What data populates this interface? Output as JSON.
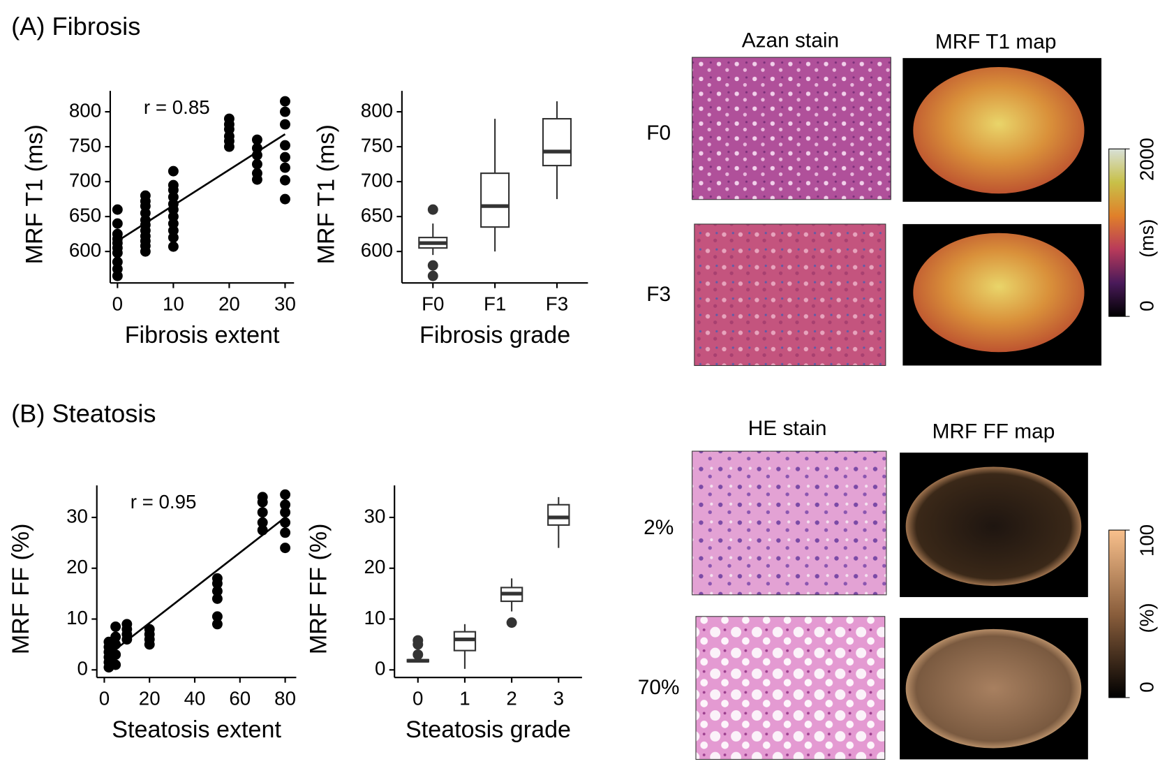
{
  "panels": [
    {
      "label": "(A) Fibrosis",
      "image_titles": [
        "Azan stain",
        "MRF T1 map"
      ],
      "row_labels": [
        "F0",
        "F3"
      ],
      "colorbar": {
        "ticks": [
          0,
          2000
        ],
        "label": "(ms)"
      }
    },
    {
      "label": "(B) Steatosis",
      "image_titles": [
        "HE stain",
        "MRF FF map"
      ],
      "row_labels": [
        "2%",
        "70%"
      ],
      "colorbar": {
        "ticks": [
          0,
          100
        ],
        "label": "(%)"
      }
    }
  ],
  "chart_data": [
    {
      "type": "scatter",
      "xlabel": "Fibrosis extent",
      "ylabel": "MRF T1 (ms)",
      "annotation": "r = 0.85",
      "color": "#000000",
      "x": [
        0,
        0,
        0,
        0,
        0,
        0,
        0,
        0,
        0,
        0,
        5,
        5,
        5,
        5,
        5,
        5,
        5,
        5,
        5,
        5,
        5,
        10,
        10,
        10,
        10,
        10,
        10,
        10,
        10,
        10,
        10,
        10,
        20,
        20,
        20,
        20,
        20,
        20,
        25,
        25,
        25,
        25,
        25,
        25,
        30,
        30,
        30,
        30,
        30,
        30,
        30,
        30
      ],
      "y": [
        660,
        640,
        625,
        618,
        612,
        605,
        598,
        585,
        575,
        565,
        680,
        672,
        665,
        655,
        645,
        638,
        630,
        622,
        615,
        608,
        600,
        715,
        695,
        688,
        678,
        668,
        660,
        650,
        640,
        630,
        620,
        607,
        790,
        782,
        775,
        765,
        758,
        750,
        760,
        748,
        738,
        725,
        712,
        703,
        815,
        800,
        782,
        752,
        735,
        720,
        702,
        675
      ],
      "fit": {
        "x": [
          0,
          30
        ],
        "y": [
          615,
          768
        ]
      },
      "xlim": [
        -1.3,
        31.6
      ],
      "xticks": [
        0,
        10,
        20,
        30
      ],
      "ylim": [
        555,
        830
      ],
      "yticks": [
        600,
        650,
        700,
        750,
        800
      ]
    },
    {
      "type": "box",
      "xlabel": "Fibrosis grade",
      "ylabel": "MRF T1 (ms)",
      "categories": [
        "F0",
        "F1",
        "F3"
      ],
      "boxes": [
        {
          "low": 595,
          "q1": 605,
          "median": 612,
          "q3": 620,
          "high": 640,
          "outliers": [
            660,
            580,
            565
          ]
        },
        {
          "low": 600,
          "q1": 635,
          "median": 665,
          "q3": 712,
          "high": 790,
          "outliers": []
        },
        {
          "low": 675,
          "q1": 723,
          "median": 743,
          "q3": 790,
          "high": 815,
          "outliers": []
        }
      ],
      "ylim": [
        555,
        830
      ],
      "yticks": [
        600,
        650,
        700,
        750,
        800
      ]
    },
    {
      "type": "scatter",
      "xlabel": "Steatosis extent",
      "ylabel": "MRF FF (%)",
      "annotation": "r = 0.95",
      "color": "#000000",
      "x": [
        2,
        2,
        2,
        2,
        2,
        2,
        3,
        3,
        3,
        5,
        5,
        5,
        5,
        5,
        10,
        10,
        10,
        10,
        20,
        20,
        20,
        20,
        50,
        50,
        50,
        50,
        50,
        50,
        70,
        70,
        70,
        70,
        70,
        80,
        80,
        80,
        80,
        80,
        80
      ],
      "y": [
        0.5,
        1.5,
        2.5,
        3.5,
        4.5,
        5.5,
        1,
        2,
        4,
        1,
        3,
        5,
        6.5,
        8.5,
        6,
        7,
        8,
        9,
        5,
        6,
        7,
        8,
        9,
        10.5,
        14,
        15.5,
        17,
        18,
        27.5,
        29,
        31,
        33,
        34,
        24,
        27,
        29,
        31,
        32.5,
        34.5
      ],
      "fit": {
        "x": [
          2,
          80
        ],
        "y": [
          3,
          30
        ]
      },
      "xlim": [
        -3.3,
        84.9
      ],
      "xticks": [
        0,
        20,
        40,
        60,
        80
      ],
      "ylim": [
        -1.5,
        36.3
      ],
      "yticks": [
        0,
        10,
        20,
        30
      ]
    },
    {
      "type": "box",
      "xlabel": "Steatosis grade",
      "ylabel": "MRF FF (%)",
      "categories": [
        "0",
        "1",
        "2",
        "3"
      ],
      "boxes": [
        {
          "low": 1.5,
          "q1": 1.6,
          "median": 1.8,
          "q3": 2,
          "high": 2.2,
          "outliers": [
            3,
            5,
            5.8
          ]
        },
        {
          "low": 0.2,
          "q1": 3.8,
          "median": 6,
          "q3": 7.5,
          "high": 9,
          "outliers": []
        },
        {
          "low": 11.5,
          "q1": 13.5,
          "median": 15,
          "q3": 16.2,
          "high": 18,
          "outliers": [
            9.3
          ]
        },
        {
          "low": 24,
          "q1": 28.5,
          "median": 30,
          "q3": 32.5,
          "high": 34,
          "outliers": []
        }
      ],
      "ylim": [
        -1.5,
        36.3
      ],
      "yticks": [
        0,
        10,
        20,
        30
      ]
    }
  ]
}
